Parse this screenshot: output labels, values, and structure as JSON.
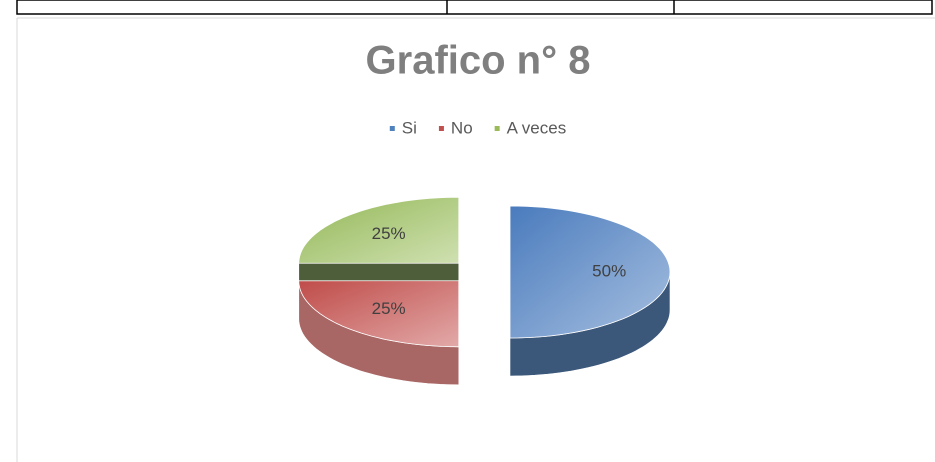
{
  "chart_data": {
    "type": "pie",
    "title": "Grafico n° 8",
    "categories": [
      "Si",
      "No",
      "A veces"
    ],
    "values": [
      50,
      25,
      25
    ],
    "value_labels": [
      "50%",
      "25%",
      "25%"
    ],
    "colors": [
      "#4f81bd",
      "#c0504d",
      "#9bbb59"
    ],
    "legend": "top"
  }
}
